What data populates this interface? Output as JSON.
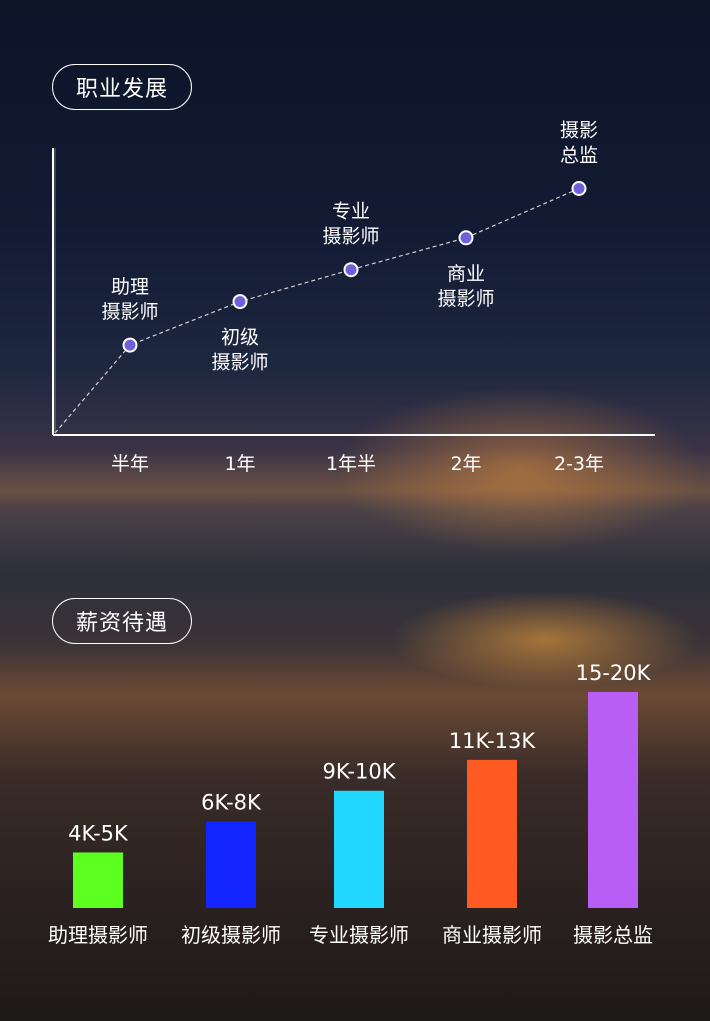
{
  "sections": {
    "career_title": "职业发展",
    "salary_title": "薪资待遇"
  },
  "chart_data": [
    {
      "type": "line",
      "x": [
        "半年",
        "1年",
        "1年半",
        "2年",
        "2-3年"
      ],
      "points": [
        {
          "label": [
            "助理",
            "摄影师"
          ],
          "y": 31,
          "label_pos": "above"
        },
        {
          "label": [
            "初级",
            "摄影师"
          ],
          "y": 46,
          "label_pos": "below"
        },
        {
          "label": [
            "专业",
            "摄影师"
          ],
          "y": 57,
          "label_pos": "above"
        },
        {
          "label": [
            "商业",
            "摄影师"
          ],
          "y": 68,
          "label_pos": "below"
        },
        {
          "label": [
            "摄影",
            "总监"
          ],
          "y": 85,
          "label_pos": "above"
        }
      ],
      "ylim": [
        0,
        100
      ],
      "line_color": "#cfcfcf",
      "point_color": "#6f5fd8"
    },
    {
      "type": "bar",
      "categories": [
        "助理摄影师",
        "初级摄影师",
        "专业摄影师",
        "商业摄影师",
        "摄影总监"
      ],
      "labels": [
        "4K-5K",
        "6K-8K",
        "9K-10K",
        "11K-13K",
        "15-20K"
      ],
      "values": [
        4.5,
        7,
        9.5,
        12,
        17.5
      ],
      "ylim": [
        0,
        20
      ],
      "colors": [
        "#5cff1f",
        "#1426ff",
        "#22d7ff",
        "#ff5a22",
        "#b95ef5"
      ]
    }
  ]
}
